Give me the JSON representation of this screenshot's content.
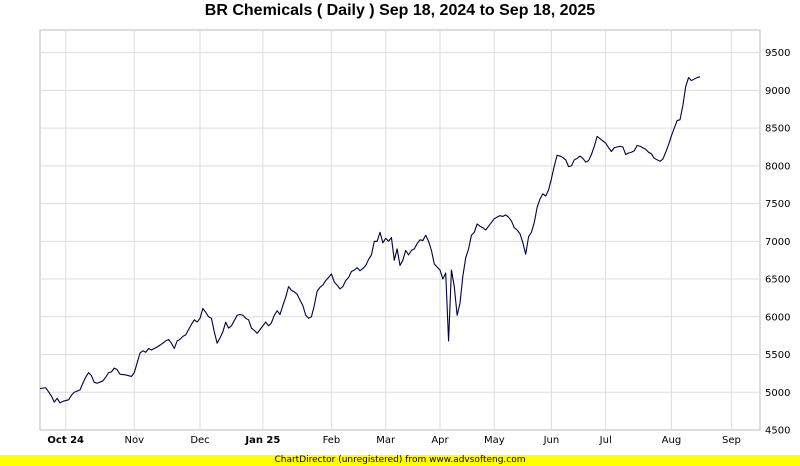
{
  "chart_data": {
    "type": "line",
    "title": "BR Chemicals ( Daily ) Sep 18, 2024 to Sep 18, 2025",
    "xlabel": "",
    "ylabel": "",
    "ylim": [
      4500,
      9800
    ],
    "y_ticks": [
      4500,
      5000,
      5500,
      6000,
      6500,
      7000,
      7500,
      8000,
      8500,
      9000,
      9500
    ],
    "x_range": [
      0,
      252
    ],
    "x_ticks": [
      {
        "label": "Oct 24",
        "x": 9,
        "bold": true
      },
      {
        "label": "Nov",
        "x": 33,
        "bold": false
      },
      {
        "label": "Dec",
        "x": 56,
        "bold": false
      },
      {
        "label": "Jan 25",
        "x": 78,
        "bold": true
      },
      {
        "label": "Feb",
        "x": 102,
        "bold": false
      },
      {
        "label": "Mar",
        "x": 121,
        "bold": false
      },
      {
        "label": "Apr",
        "x": 140,
        "bold": false
      },
      {
        "label": "May",
        "x": 159,
        "bold": false
      },
      {
        "label": "Jun",
        "x": 179,
        "bold": false
      },
      {
        "label": "Jul",
        "x": 198,
        "bold": false
      },
      {
        "label": "Aug",
        "x": 221,
        "bold": false
      },
      {
        "label": "Sep",
        "x": 242,
        "bold": false
      }
    ],
    "grid": true,
    "legend": "none",
    "series": [
      {
        "color": "#000040",
        "points": [
          [
            0,
            5050
          ],
          [
            2,
            5060
          ],
          [
            4,
            4950
          ],
          [
            5,
            4870
          ],
          [
            6,
            4920
          ],
          [
            7,
            4860
          ],
          [
            8,
            4880
          ],
          [
            10,
            4900
          ],
          [
            11,
            4960
          ],
          [
            12,
            5000
          ],
          [
            14,
            5030
          ],
          [
            15,
            5120
          ],
          [
            16,
            5200
          ],
          [
            17,
            5260
          ],
          [
            18,
            5220
          ],
          [
            19,
            5130
          ],
          [
            20,
            5120
          ],
          [
            22,
            5150
          ],
          [
            23,
            5200
          ],
          [
            24,
            5260
          ],
          [
            25,
            5270
          ],
          [
            26,
            5320
          ],
          [
            27,
            5300
          ],
          [
            28,
            5240
          ],
          [
            30,
            5230
          ],
          [
            32,
            5210
          ],
          [
            33,
            5260
          ],
          [
            34,
            5390
          ],
          [
            35,
            5520
          ],
          [
            36,
            5550
          ],
          [
            37,
            5530
          ],
          [
            38,
            5580
          ],
          [
            39,
            5560
          ],
          [
            41,
            5600
          ],
          [
            43,
            5650
          ],
          [
            44,
            5680
          ],
          [
            45,
            5700
          ],
          [
            46,
            5650
          ],
          [
            47,
            5580
          ],
          [
            48,
            5680
          ],
          [
            49,
            5700
          ],
          [
            50,
            5740
          ],
          [
            51,
            5760
          ],
          [
            52,
            5830
          ],
          [
            53,
            5900
          ],
          [
            54,
            5960
          ],
          [
            55,
            5930
          ],
          [
            56,
            5980
          ],
          [
            57,
            6110
          ],
          [
            58,
            6060
          ],
          [
            59,
            6000
          ],
          [
            60,
            5980
          ],
          [
            61,
            5800
          ],
          [
            62,
            5650
          ],
          [
            63,
            5720
          ],
          [
            64,
            5800
          ],
          [
            65,
            5930
          ],
          [
            66,
            5850
          ],
          [
            67,
            5880
          ],
          [
            68,
            5950
          ],
          [
            69,
            6020
          ],
          [
            70,
            6030
          ],
          [
            71,
            6020
          ],
          [
            72,
            5980
          ],
          [
            73,
            5960
          ],
          [
            74,
            5850
          ],
          [
            75,
            5820
          ],
          [
            76,
            5780
          ],
          [
            77,
            5830
          ],
          [
            78,
            5880
          ],
          [
            79,
            5930
          ],
          [
            80,
            5880
          ],
          [
            81,
            5920
          ],
          [
            82,
            6020
          ],
          [
            83,
            6080
          ],
          [
            84,
            6030
          ],
          [
            85,
            6150
          ],
          [
            86,
            6260
          ],
          [
            87,
            6400
          ],
          [
            88,
            6350
          ],
          [
            89,
            6330
          ],
          [
            90,
            6300
          ],
          [
            91,
            6220
          ],
          [
            92,
            6150
          ],
          [
            93,
            6020
          ],
          [
            94,
            5980
          ],
          [
            95,
            6000
          ],
          [
            96,
            6150
          ],
          [
            97,
            6340
          ],
          [
            98,
            6390
          ],
          [
            99,
            6420
          ],
          [
            100,
            6480
          ],
          [
            101,
            6520
          ],
          [
            102,
            6570
          ],
          [
            103,
            6460
          ],
          [
            104,
            6420
          ],
          [
            105,
            6370
          ],
          [
            106,
            6400
          ],
          [
            107,
            6480
          ],
          [
            108,
            6520
          ],
          [
            109,
            6600
          ],
          [
            110,
            6620
          ],
          [
            111,
            6650
          ],
          [
            112,
            6610
          ],
          [
            113,
            6640
          ],
          [
            114,
            6680
          ],
          [
            115,
            6760
          ],
          [
            116,
            6820
          ],
          [
            117,
            7000
          ],
          [
            118,
            7000
          ],
          [
            119,
            7120
          ],
          [
            120,
            6980
          ],
          [
            121,
            7040
          ],
          [
            122,
            7000
          ],
          [
            123,
            7050
          ],
          [
            124,
            6750
          ],
          [
            125,
            6900
          ],
          [
            126,
            6680
          ],
          [
            127,
            6750
          ],
          [
            128,
            6880
          ],
          [
            129,
            6820
          ],
          [
            130,
            6880
          ],
          [
            131,
            6900
          ],
          [
            132,
            6970
          ],
          [
            133,
            7020
          ],
          [
            134,
            7010
          ],
          [
            135,
            7080
          ],
          [
            136,
            7000
          ],
          [
            137,
            6880
          ],
          [
            138,
            6700
          ],
          [
            139,
            6660
          ],
          [
            140,
            6620
          ],
          [
            141,
            6500
          ],
          [
            142,
            6580
          ],
          [
            143,
            5680
          ],
          [
            144,
            6620
          ],
          [
            145,
            6400
          ],
          [
            146,
            6020
          ],
          [
            147,
            6180
          ],
          [
            148,
            6540
          ],
          [
            149,
            6780
          ],
          [
            150,
            6900
          ],
          [
            151,
            7080
          ],
          [
            152,
            7120
          ],
          [
            153,
            7230
          ],
          [
            154,
            7200
          ],
          [
            155,
            7180
          ],
          [
            156,
            7150
          ],
          [
            157,
            7200
          ],
          [
            158,
            7250
          ],
          [
            159,
            7300
          ],
          [
            160,
            7320
          ],
          [
            161,
            7340
          ],
          [
            162,
            7330
          ],
          [
            163,
            7350
          ],
          [
            164,
            7320
          ],
          [
            165,
            7270
          ],
          [
            166,
            7180
          ],
          [
            167,
            7150
          ],
          [
            168,
            7100
          ],
          [
            169,
            6980
          ],
          [
            170,
            6830
          ],
          [
            171,
            7060
          ],
          [
            172,
            7120
          ],
          [
            173,
            7250
          ],
          [
            174,
            7450
          ],
          [
            175,
            7560
          ],
          [
            176,
            7630
          ],
          [
            177,
            7600
          ],
          [
            178,
            7680
          ],
          [
            179,
            7830
          ],
          [
            180,
            8000
          ],
          [
            181,
            8140
          ],
          [
            182,
            8130
          ],
          [
            183,
            8110
          ],
          [
            184,
            8080
          ],
          [
            185,
            7990
          ],
          [
            186,
            8000
          ],
          [
            187,
            8080
          ],
          [
            188,
            8100
          ],
          [
            189,
            8130
          ],
          [
            190,
            8100
          ],
          [
            191,
            8050
          ],
          [
            192,
            8070
          ],
          [
            193,
            8150
          ],
          [
            194,
            8260
          ],
          [
            195,
            8390
          ],
          [
            196,
            8360
          ],
          [
            197,
            8330
          ],
          [
            198,
            8300
          ],
          [
            199,
            8240
          ],
          [
            200,
            8190
          ],
          [
            201,
            8240
          ],
          [
            202,
            8250
          ],
          [
            203,
            8260
          ],
          [
            204,
            8250
          ],
          [
            205,
            8150
          ],
          [
            206,
            8170
          ],
          [
            207,
            8180
          ],
          [
            208,
            8200
          ],
          [
            209,
            8270
          ],
          [
            210,
            8260
          ],
          [
            211,
            8240
          ],
          [
            212,
            8220
          ],
          [
            213,
            8180
          ],
          [
            214,
            8160
          ],
          [
            215,
            8100
          ],
          [
            216,
            8080
          ],
          [
            217,
            8060
          ],
          [
            218,
            8090
          ],
          [
            219,
            8180
          ],
          [
            220,
            8280
          ],
          [
            221,
            8400
          ],
          [
            222,
            8500
          ],
          [
            223,
            8600
          ],
          [
            224,
            8610
          ],
          [
            225,
            8800
          ],
          [
            226,
            9050
          ],
          [
            227,
            9170
          ],
          [
            228,
            9130
          ],
          [
            229,
            9150
          ],
          [
            230,
            9170
          ],
          [
            231,
            9180
          ]
        ]
      }
    ]
  },
  "footer": {
    "text": "ChartDirector (unregistered) from www.advsofteng.com"
  }
}
